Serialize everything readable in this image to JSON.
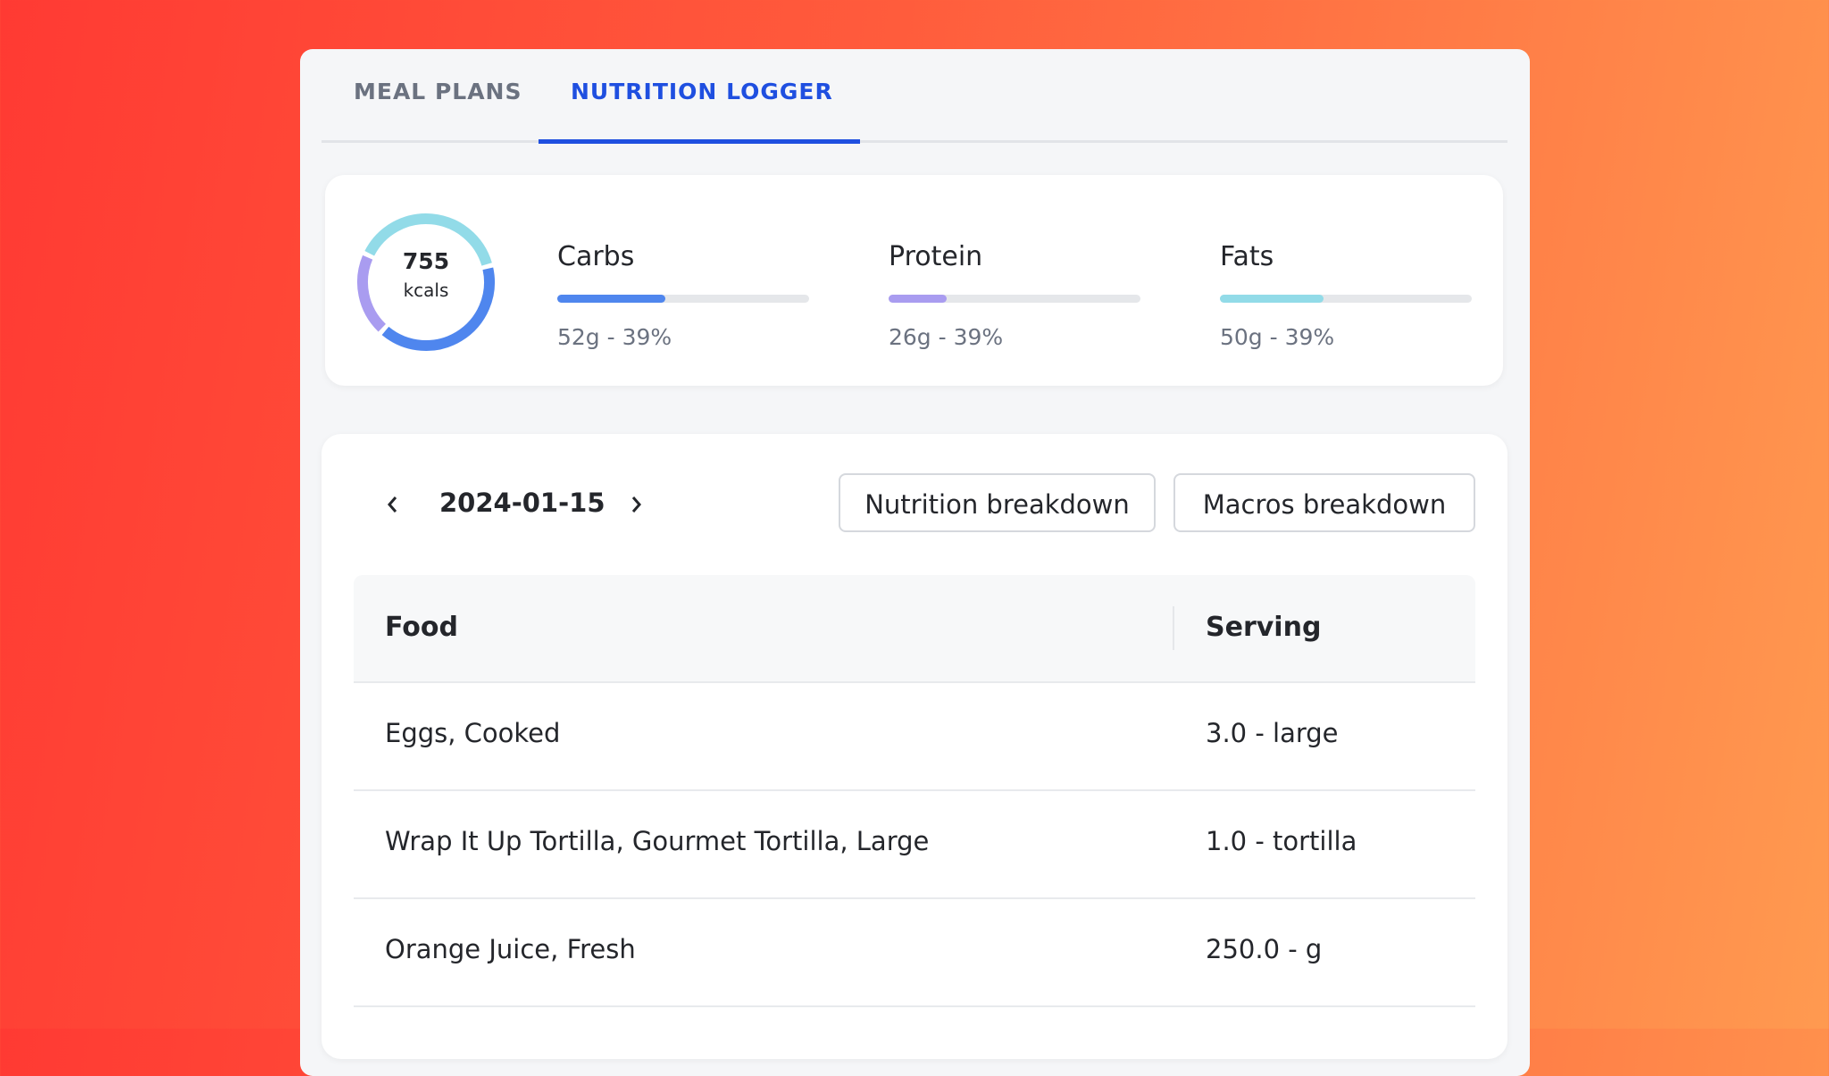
{
  "tabs": [
    "MEAL PLANS",
    "NUTRITION LOGGER"
  ],
  "summary": {
    "kcals": 755,
    "unit": "kcals",
    "macros": [
      {
        "name": "Carbs",
        "grams": 52,
        "label": "52g - 39%",
        "progress": 0.43,
        "color": "#4f86ee"
      },
      {
        "name": "Protein",
        "grams": 26,
        "label": "26g - 39%",
        "progress": 0.23,
        "color": "#a99cf0"
      },
      {
        "name": "Fats",
        "grams": 50,
        "label": "50g - 39%",
        "progress": 0.41,
        "color": "#92dbe8"
      }
    ]
  },
  "log": {
    "date": "2024-01-15",
    "buttons": [
      "Nutrition breakdown",
      "Macros breakdown"
    ],
    "table": {
      "header": [
        "Food",
        "Serving"
      ],
      "rows": [
        [
          "Eggs, Cooked",
          "3.0 - large"
        ],
        [
          "Wrap It Up Tortilla, Gourmet Tortilla, Large",
          "1.0 - tortilla"
        ],
        [
          "Orange Juice, Fresh",
          "250.0 - g"
        ]
      ]
    }
  }
}
